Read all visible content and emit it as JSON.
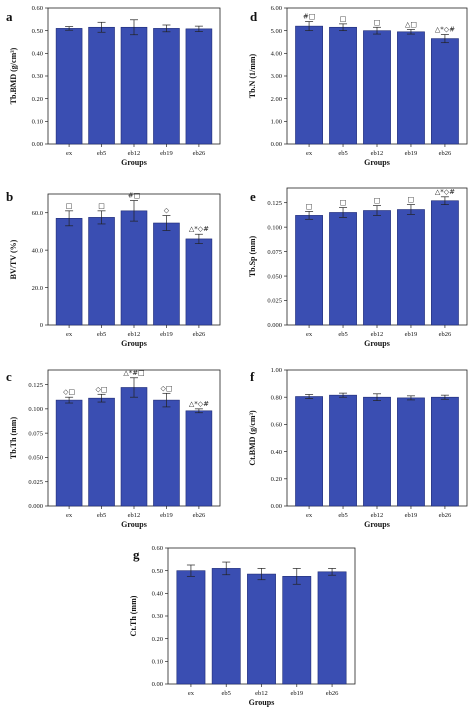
{
  "style": {
    "bar_color": "#3a4eb2",
    "bar_edge": "#1d2a75",
    "axis_color": "#222222"
  },
  "chart_data": [
    {
      "panel": "a",
      "type": "bar",
      "categories": [
        "ex",
        "eb5",
        "eb12",
        "eb19",
        "eb26"
      ],
      "values": [
        0.51,
        0.515,
        0.515,
        0.51,
        0.508
      ],
      "errors": [
        0.008,
        0.022,
        0.033,
        0.015,
        0.012
      ],
      "annotations": [
        "",
        "",
        "",
        "",
        ""
      ],
      "ylabel": "Tb.BMD (g/cm³)",
      "xlabel": "Groups",
      "ylim": [
        0,
        0.6
      ],
      "yticks": [
        "0.00",
        "0.10",
        "0.20",
        "0.30",
        "0.40",
        "0.50",
        "0.60"
      ]
    },
    {
      "panel": "d",
      "type": "bar",
      "categories": [
        "ex",
        "eb5",
        "eb12",
        "eb19",
        "eb26"
      ],
      "values": [
        5.2,
        5.15,
        5.0,
        4.95,
        4.65
      ],
      "errors": [
        0.2,
        0.15,
        0.15,
        0.1,
        0.18
      ],
      "annotations": [
        "#□",
        "□",
        "□",
        "△□",
        "△*◇#"
      ],
      "ylabel": "Tb.N (1/mm)",
      "xlabel": "Groups",
      "ylim": [
        0,
        6
      ],
      "yticks": [
        "0.00",
        "1.00",
        "2.00",
        "3.00",
        "4.00",
        "5.00",
        "6.00"
      ]
    },
    {
      "panel": "b",
      "type": "bar",
      "categories": [
        "ex",
        "eb5",
        "eb12",
        "eb19",
        "eb26"
      ],
      "values": [
        57,
        57.5,
        61,
        54.5,
        46
      ],
      "errors": [
        4,
        3.5,
        5.5,
        4,
        2.5
      ],
      "annotations": [
        "□",
        "□",
        "#□",
        "◇",
        "△*◇#"
      ],
      "ylabel": "BV/TV (%)",
      "xlabel": "Groups",
      "ylim": [
        0,
        70
      ],
      "yticks": [
        "0",
        "20.0",
        "40.0",
        "60.0"
      ],
      "ytick_values": [
        0,
        20,
        40,
        60
      ]
    },
    {
      "panel": "e",
      "type": "bar",
      "categories": [
        "ex",
        "eb5",
        "eb12",
        "eb19",
        "eb26"
      ],
      "values": [
        0.112,
        0.115,
        0.117,
        0.118,
        0.127
      ],
      "errors": [
        0.004,
        0.005,
        0.005,
        0.005,
        0.004
      ],
      "annotations": [
        "□",
        "□",
        "□",
        "□",
        "△*◇#"
      ],
      "ylabel": "Tb.Sp (mm)",
      "xlabel": "Groups",
      "ylim": [
        0,
        0.14
      ],
      "yticks": [
        "0.000",
        "0.025",
        "0.050",
        "0.075",
        "0.100",
        "0.125"
      ],
      "ytick_values": [
        0,
        0.025,
        0.05,
        0.075,
        0.1,
        0.125
      ]
    },
    {
      "panel": "c",
      "type": "bar",
      "categories": [
        "ex",
        "eb5",
        "eb12",
        "eb19",
        "eb26"
      ],
      "values": [
        0.109,
        0.111,
        0.122,
        0.109,
        0.098
      ],
      "errors": [
        0.003,
        0.004,
        0.01,
        0.007,
        0.002
      ],
      "annotations": [
        "◇□",
        "◇□",
        "△*#□",
        "◇□",
        "△*◇#"
      ],
      "ylabel": "Tb.Th (mm)",
      "xlabel": "Groups",
      "ylim": [
        0,
        0.14
      ],
      "yticks": [
        "0.000",
        "0.025",
        "0.050",
        "0.075",
        "0.100",
        "0.125"
      ],
      "ytick_values": [
        0,
        0.025,
        0.05,
        0.075,
        0.1,
        0.125
      ]
    },
    {
      "panel": "f",
      "type": "bar",
      "categories": [
        "ex",
        "eb5",
        "eb12",
        "eb19",
        "eb26"
      ],
      "values": [
        0.805,
        0.815,
        0.8,
        0.795,
        0.8
      ],
      "errors": [
        0.015,
        0.015,
        0.025,
        0.015,
        0.015
      ],
      "annotations": [
        "",
        "",
        "",
        "",
        ""
      ],
      "ylabel": "Ct.BMD (g/cm³)",
      "xlabel": "Groups",
      "ylim": [
        0,
        1.0
      ],
      "yticks": [
        "0.00",
        "0.20",
        "0.40",
        "0.60",
        "0.80",
        "1.00"
      ]
    },
    {
      "panel": "g",
      "type": "bar",
      "categories": [
        "ex",
        "eb5",
        "eb12",
        "eb19",
        "eb26"
      ],
      "values": [
        0.5,
        0.51,
        0.485,
        0.475,
        0.495
      ],
      "errors": [
        0.025,
        0.028,
        0.025,
        0.035,
        0.015
      ],
      "annotations": [
        "",
        "",
        "",
        "",
        ""
      ],
      "ylabel": "Ct.Th (mm)",
      "xlabel": "Groups",
      "ylim": [
        0,
        0.6
      ],
      "yticks": [
        "0.00",
        "0.10",
        "0.20",
        "0.30",
        "0.40",
        "0.50",
        "0.60"
      ]
    }
  ]
}
